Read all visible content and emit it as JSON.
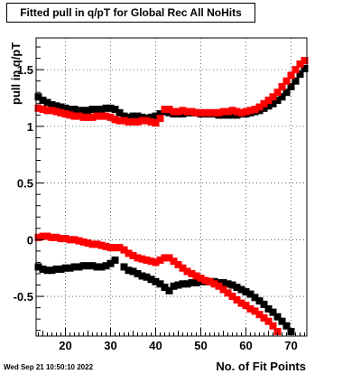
{
  "chart_data": {
    "type": "scatter",
    "title": "Fitted pull in q/pT for Global Rec All NoHits",
    "xlabel": "No. of Fit Points",
    "ylabel": "pull in q/pT",
    "xlim": [
      13.5,
      73.5
    ],
    "ylim": [
      -0.85,
      1.78
    ],
    "x_ticks": [
      20,
      30,
      40,
      50,
      60,
      70
    ],
    "y_ticks": [
      -0.5,
      0,
      0.5,
      1,
      1.5
    ],
    "x_tick_labels": [
      "20",
      "30",
      "40",
      "50",
      "60",
      "70"
    ],
    "y_tick_labels": [
      "-0.5",
      "0",
      "0.5",
      "1",
      "1.5"
    ],
    "grid": true,
    "timestamp": "Wed Sep 21 10:50:10 2022",
    "series": [
      {
        "color": "#000000",
        "x": [
          14,
          15,
          16,
          17,
          18,
          19,
          20,
          21,
          22,
          23,
          24,
          25,
          26,
          27,
          28,
          29,
          30,
          31,
          32,
          33,
          34,
          35,
          36,
          37,
          38,
          39,
          40,
          41,
          42,
          43,
          44,
          45,
          46,
          47,
          48,
          49,
          50,
          51,
          52,
          53,
          54,
          55,
          56,
          57,
          58,
          59,
          60,
          61,
          62,
          63,
          64,
          65,
          66,
          67,
          68,
          69,
          70,
          71,
          72,
          73
        ],
        "y": [
          1.26,
          1.23,
          1.21,
          1.19,
          1.18,
          1.17,
          1.16,
          1.15,
          1.15,
          1.14,
          1.14,
          1.14,
          1.15,
          1.15,
          1.15,
          1.16,
          1.16,
          1.15,
          1.12,
          1.09,
          1.08,
          1.09,
          1.09,
          1.08,
          1.07,
          1.08,
          1.09,
          1.11,
          1.13,
          1.12,
          1.11,
          1.11,
          1.11,
          1.12,
          1.12,
          1.12,
          1.11,
          1.11,
          1.11,
          1.11,
          1.1,
          1.1,
          1.1,
          1.1,
          1.1,
          1.11,
          1.11,
          1.12,
          1.13,
          1.14,
          1.16,
          1.18,
          1.2,
          1.23,
          1.26,
          1.3,
          1.35,
          1.4,
          1.46,
          1.51
        ]
      },
      {
        "color": "#ff0000",
        "x": [
          14,
          15,
          16,
          17,
          18,
          19,
          20,
          21,
          22,
          23,
          24,
          25,
          26,
          27,
          28,
          29,
          30,
          31,
          32,
          33,
          34,
          35,
          36,
          37,
          38,
          39,
          40,
          41,
          42,
          43,
          44,
          45,
          46,
          47,
          48,
          49,
          50,
          51,
          52,
          53,
          54,
          55,
          56,
          57,
          58,
          59,
          60,
          61,
          62,
          63,
          64,
          65,
          66,
          67,
          68,
          69,
          70,
          71,
          72,
          73
        ],
        "y": [
          1.16,
          1.15,
          1.14,
          1.14,
          1.13,
          1.12,
          1.11,
          1.1,
          1.09,
          1.09,
          1.08,
          1.08,
          1.08,
          1.09,
          1.09,
          1.09,
          1.08,
          1.06,
          1.05,
          1.05,
          1.04,
          1.04,
          1.04,
          1.05,
          1.05,
          1.04,
          1.03,
          1.07,
          1.15,
          1.15,
          1.13,
          1.13,
          1.14,
          1.13,
          1.13,
          1.12,
          1.12,
          1.12,
          1.12,
          1.12,
          1.12,
          1.13,
          1.13,
          1.14,
          1.13,
          1.12,
          1.13,
          1.14,
          1.15,
          1.17,
          1.2,
          1.23,
          1.26,
          1.3,
          1.35,
          1.4,
          1.45,
          1.5,
          1.55,
          1.58
        ]
      },
      {
        "color": "#000000",
        "x": [
          14,
          15,
          16,
          17,
          18,
          19,
          20,
          21,
          22,
          23,
          24,
          25,
          26,
          27,
          28,
          29,
          30,
          31,
          33,
          34,
          35,
          36,
          37,
          38,
          39,
          40,
          41,
          42,
          43,
          44,
          45,
          46,
          47,
          48,
          49,
          50,
          51,
          52,
          53,
          54,
          55,
          56,
          57,
          58,
          59,
          60,
          61,
          62,
          63,
          64,
          65,
          66,
          67,
          68,
          69,
          70
        ],
        "y": [
          -0.24,
          -0.26,
          -0.27,
          -0.27,
          -0.26,
          -0.26,
          -0.25,
          -0.25,
          -0.24,
          -0.24,
          -0.23,
          -0.23,
          -0.23,
          -0.24,
          -0.24,
          -0.23,
          -0.21,
          -0.18,
          -0.24,
          -0.27,
          -0.28,
          -0.3,
          -0.32,
          -0.33,
          -0.35,
          -0.37,
          -0.39,
          -0.42,
          -0.45,
          -0.41,
          -0.4,
          -0.39,
          -0.39,
          -0.38,
          -0.38,
          -0.37,
          -0.37,
          -0.37,
          -0.37,
          -0.38,
          -0.38,
          -0.39,
          -0.4,
          -0.42,
          -0.44,
          -0.46,
          -0.48,
          -0.51,
          -0.54,
          -0.57,
          -0.61,
          -0.64,
          -0.68,
          -0.72,
          -0.76,
          -0.81
        ]
      },
      {
        "color": "#ff0000",
        "x": [
          14,
          15,
          16,
          17,
          18,
          19,
          20,
          21,
          22,
          23,
          24,
          25,
          26,
          27,
          28,
          29,
          30,
          31,
          32,
          33,
          34,
          35,
          36,
          37,
          38,
          39,
          40,
          41,
          42,
          43,
          44,
          45,
          46,
          47,
          48,
          49,
          50,
          51,
          52,
          53,
          54,
          55,
          56,
          57,
          58,
          59,
          60,
          61,
          62,
          63,
          64,
          65,
          66,
          67
        ],
        "y": [
          0.02,
          0.03,
          0.03,
          0.02,
          0.02,
          0.01,
          0.01,
          0.0,
          0.0,
          -0.01,
          -0.02,
          -0.03,
          -0.04,
          -0.04,
          -0.05,
          -0.06,
          -0.07,
          -0.07,
          -0.07,
          -0.09,
          -0.12,
          -0.14,
          -0.16,
          -0.17,
          -0.18,
          -0.19,
          -0.2,
          -0.18,
          -0.16,
          -0.16,
          -0.19,
          -0.22,
          -0.25,
          -0.28,
          -0.3,
          -0.32,
          -0.34,
          -0.36,
          -0.37,
          -0.39,
          -0.41,
          -0.44,
          -0.47,
          -0.5,
          -0.53,
          -0.56,
          -0.58,
          -0.61,
          -0.63,
          -0.66,
          -0.69,
          -0.72,
          -0.76,
          -0.81
        ]
      }
    ]
  }
}
